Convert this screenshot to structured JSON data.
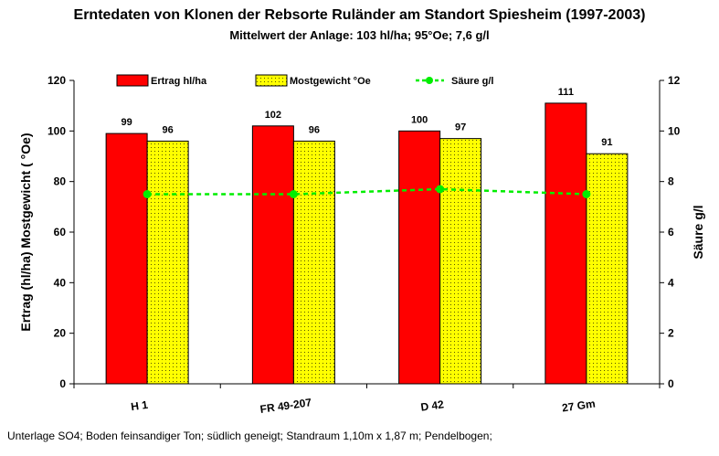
{
  "title": "Erntedaten von Klonen der Rebsorte Ruländer am Standort Spiesheim (1997-2003)",
  "subtitle": "Mittelwert der Anlage: 103 hl/ha; 95°Oe; 7,6 g/l",
  "footer": "Unterlage SO4; Boden feinsandiger Ton; südlich geneigt;  Standraum 1,10m x 1,87 m; Pendelbogen;",
  "chart_data": {
    "type": "bar",
    "categories": [
      "H 1",
      "FR 49-207",
      "D 42",
      "27 Gm"
    ],
    "series": [
      {
        "name": "Ertrag hl/ha",
        "kind": "bar",
        "axis": "left",
        "color": "#ff0000",
        "values": [
          99,
          102,
          100,
          111
        ]
      },
      {
        "name": "Mostgewicht °Oe",
        "kind": "bar",
        "axis": "left",
        "color": "#ffff00",
        "pattern": "dotted",
        "values": [
          96,
          96,
          97,
          91
        ]
      },
      {
        "name": "Säure g/l",
        "kind": "line",
        "axis": "right",
        "color": "#00ee00",
        "style": "dashed",
        "values": [
          7.5,
          7.5,
          7.7,
          7.5
        ]
      }
    ],
    "ylabel": "Ertrag (hl/ha)  Mostgewicht ( °Oe)",
    "y2label": "Säure g/l",
    "ylim": [
      0,
      120
    ],
    "y2lim": [
      0,
      12
    ],
    "yticks": [
      "0",
      "20",
      "40",
      "60",
      "80",
      "100",
      "120"
    ],
    "y2ticks": [
      "0",
      "2",
      "4",
      "6",
      "8",
      "10",
      "12"
    ],
    "data_labels": [
      "99",
      "96",
      "102",
      "96",
      "100",
      "97",
      "111",
      "91"
    ],
    "legend_position": "top",
    "grid": false
  }
}
